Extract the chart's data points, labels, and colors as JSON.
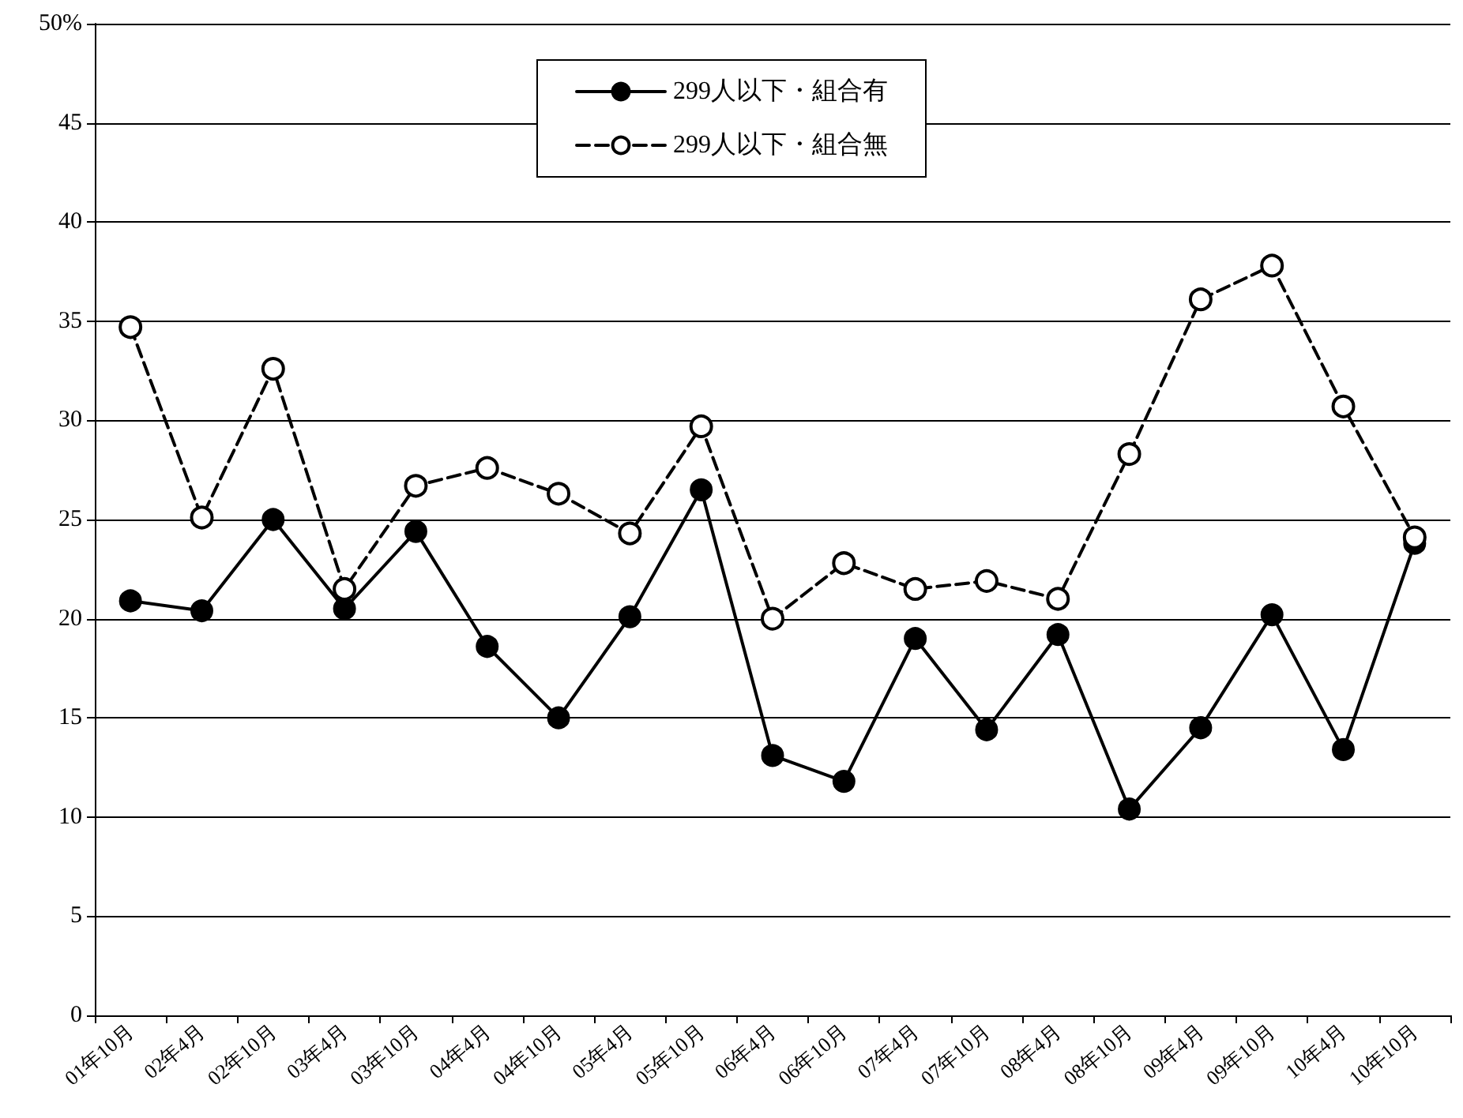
{
  "chart_data": {
    "type": "line",
    "categories": [
      "01年10月",
      "02年4月",
      "02年10月",
      "03年4月",
      "03年10月",
      "04年4月",
      "04年10月",
      "05年4月",
      "05年10月",
      "06年4月",
      "06年10月",
      "07年4月",
      "07年10月",
      "08年4月",
      "08年10月",
      "09年4月",
      "09年10月",
      "10年4月",
      "10年10月"
    ],
    "series": [
      {
        "name": "299人以下・組合有",
        "color": "#000000",
        "line_style": "solid",
        "values": [
          20.9,
          20.4,
          25.0,
          20.5,
          24.4,
          18.6,
          15.0,
          20.1,
          26.5,
          13.1,
          11.8,
          19.0,
          14.4,
          19.2,
          10.4,
          14.5,
          20.2,
          13.4,
          23.8
        ]
      },
      {
        "name": "299人以下・組合無",
        "color": "#000000",
        "line_style": "dashed",
        "values": [
          34.7,
          25.1,
          32.6,
          21.5,
          26.7,
          27.6,
          26.3,
          24.3,
          29.7,
          20.0,
          22.8,
          21.5,
          21.9,
          21.0,
          28.3,
          36.1,
          37.8,
          30.7,
          24.1
        ]
      }
    ],
    "ylim": [
      0,
      50
    ],
    "yticks": [
      0,
      5,
      10,
      15,
      20,
      25,
      30,
      35,
      40,
      45,
      {
        "value": 50,
        "label": "50%"
      }
    ],
    "grid": "y",
    "legend": "top",
    "marker": "circle"
  }
}
